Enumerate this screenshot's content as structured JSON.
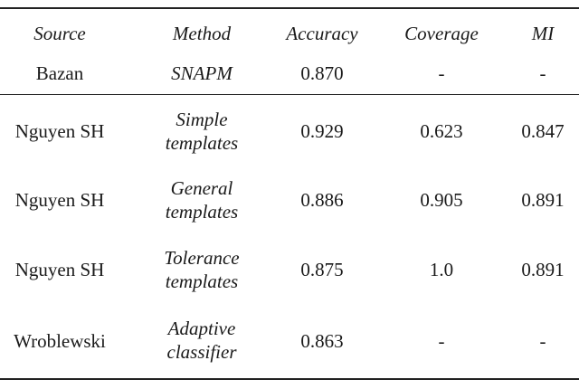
{
  "table": {
    "headers": [
      "Source",
      "Method",
      "Accuracy",
      "Coverage",
      "MI"
    ],
    "rows": [
      {
        "source": "Bazan",
        "method": [
          "SNAPM"
        ],
        "accuracy": "0.870",
        "coverage": "-",
        "mi": "-"
      },
      {
        "source": "Nguyen SH",
        "method": [
          "Simple",
          "templates"
        ],
        "accuracy": "0.929",
        "coverage": "0.623",
        "mi": "0.847"
      },
      {
        "source": "Nguyen SH",
        "method": [
          "General",
          "templates"
        ],
        "accuracy": "0.886",
        "coverage": "0.905",
        "mi": "0.891"
      },
      {
        "source": "Nguyen SH",
        "method": [
          "Tolerance",
          "templates"
        ],
        "accuracy": "0.875",
        "coverage": "1.0",
        "mi": "0.891"
      },
      {
        "source": "Wroblewski",
        "method": [
          "Adaptive",
          "classifier"
        ],
        "accuracy": "0.863",
        "coverage": "-",
        "mi": "-"
      }
    ]
  }
}
